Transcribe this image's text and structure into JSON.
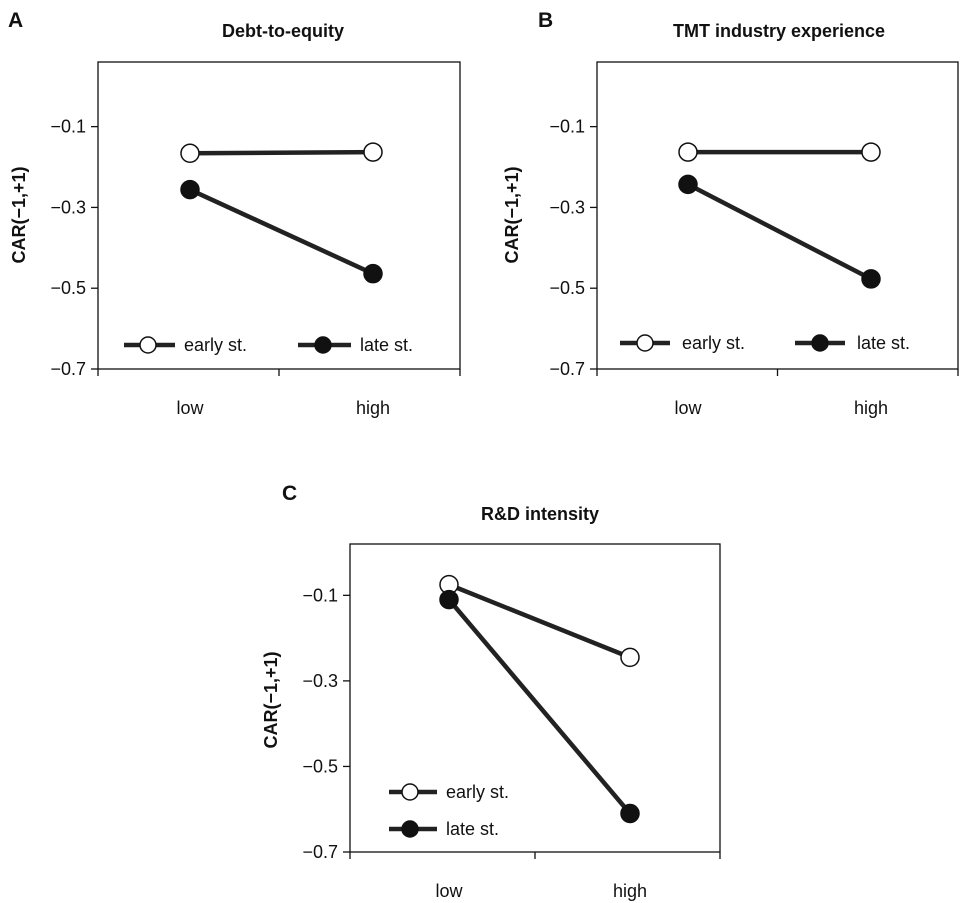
{
  "chart_data": [
    {
      "type": "line",
      "panel_letter": "A",
      "title": "Debt-to-equity",
      "ylabel": "CAR(−1,+1)",
      "xlabel": "",
      "categories": [
        "low",
        "high"
      ],
      "ylim": [
        -0.7,
        0.06
      ],
      "yticks": [
        -0.1,
        -0.3,
        -0.5,
        -0.7
      ],
      "ytick_labels": [
        "−0.1",
        "−0.3",
        "−0.5",
        "−0.7"
      ],
      "grid": false,
      "legend_placement": "bottom",
      "legend_layout": "horizontal",
      "series": [
        {
          "name": "early st.",
          "marker": "open",
          "values": [
            -0.166,
            -0.163
          ]
        },
        {
          "name": "late st.",
          "marker": "filled",
          "values": [
            -0.256,
            -0.464
          ]
        }
      ]
    },
    {
      "type": "line",
      "panel_letter": "B",
      "title": "TMT industry experience",
      "ylabel": "CAR(−1,+1)",
      "xlabel": "",
      "categories": [
        "low",
        "high"
      ],
      "ylim": [
        -0.7,
        0.06
      ],
      "yticks": [
        -0.1,
        -0.3,
        -0.5,
        -0.7
      ],
      "ytick_labels": [
        "−0.1",
        "−0.3",
        "−0.5",
        "−0.7"
      ],
      "grid": false,
      "legend_placement": "bottom",
      "legend_layout": "horizontal",
      "series": [
        {
          "name": "early st.",
          "marker": "open",
          "values": [
            -0.163,
            -0.163
          ]
        },
        {
          "name": "late st.",
          "marker": "filled",
          "values": [
            -0.243,
            -0.477
          ]
        }
      ]
    },
    {
      "type": "line",
      "panel_letter": "C",
      "title": "R&D intensity",
      "ylabel": "CAR(−1,+1)",
      "xlabel": "",
      "categories": [
        "low",
        "high"
      ],
      "ylim": [
        -0.7,
        0.02
      ],
      "yticks": [
        -0.1,
        -0.3,
        -0.5,
        -0.7
      ],
      "ytick_labels": [
        "−0.1",
        "−0.3",
        "−0.5",
        "−0.7"
      ],
      "grid": false,
      "legend_placement": "bottom-left",
      "legend_layout": "vertical",
      "series": [
        {
          "name": "early st.",
          "marker": "open",
          "values": [
            -0.075,
            -0.245
          ]
        },
        {
          "name": "late st.",
          "marker": "filled",
          "values": [
            -0.11,
            -0.61
          ]
        }
      ]
    }
  ]
}
